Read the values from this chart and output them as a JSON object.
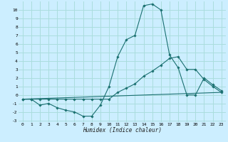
{
  "xlabel": "Humidex (Indice chaleur)",
  "background_color": "#cceeff",
  "grid_color": "#aadddd",
  "line_color": "#1a7070",
  "xlim": [
    -0.5,
    23.5
  ],
  "ylim": [
    -3.2,
    11.0
  ],
  "xticks": [
    0,
    1,
    2,
    3,
    4,
    5,
    6,
    7,
    8,
    9,
    10,
    11,
    12,
    13,
    14,
    15,
    16,
    17,
    18,
    19,
    20,
    21,
    22,
    23
  ],
  "yticks": [
    -3,
    -2,
    -1,
    0,
    1,
    2,
    3,
    4,
    5,
    6,
    7,
    8,
    9,
    10
  ],
  "line1_x": [
    0,
    1,
    2,
    3,
    4,
    5,
    6,
    7,
    8,
    9,
    10,
    11,
    12,
    13,
    14,
    15,
    16,
    17,
    18,
    19,
    20,
    21,
    22,
    23
  ],
  "line1_y": [
    -0.5,
    -0.5,
    -1.2,
    -1.0,
    -1.5,
    -1.8,
    -2.0,
    -2.5,
    -2.5,
    -1.2,
    1.0,
    4.5,
    6.5,
    7.0,
    10.5,
    10.7,
    10.0,
    4.7,
    3.2,
    0.0,
    0.0,
    2.0,
    1.2,
    0.5
  ],
  "line2_x": [
    0,
    1,
    2,
    3,
    4,
    5,
    6,
    7,
    8,
    9,
    10,
    11,
    12,
    13,
    14,
    15,
    16,
    17,
    18,
    19,
    20,
    21,
    22,
    23
  ],
  "line2_y": [
    -0.5,
    -0.5,
    -0.5,
    -0.5,
    -0.5,
    -0.5,
    -0.5,
    -0.5,
    -0.5,
    -0.5,
    -0.5,
    0.3,
    0.8,
    1.3,
    2.2,
    2.8,
    3.5,
    4.3,
    4.5,
    3.0,
    3.0,
    1.8,
    1.0,
    0.3
  ],
  "line3_x": [
    0,
    23
  ],
  "line3_y": [
    -0.5,
    0.3
  ]
}
